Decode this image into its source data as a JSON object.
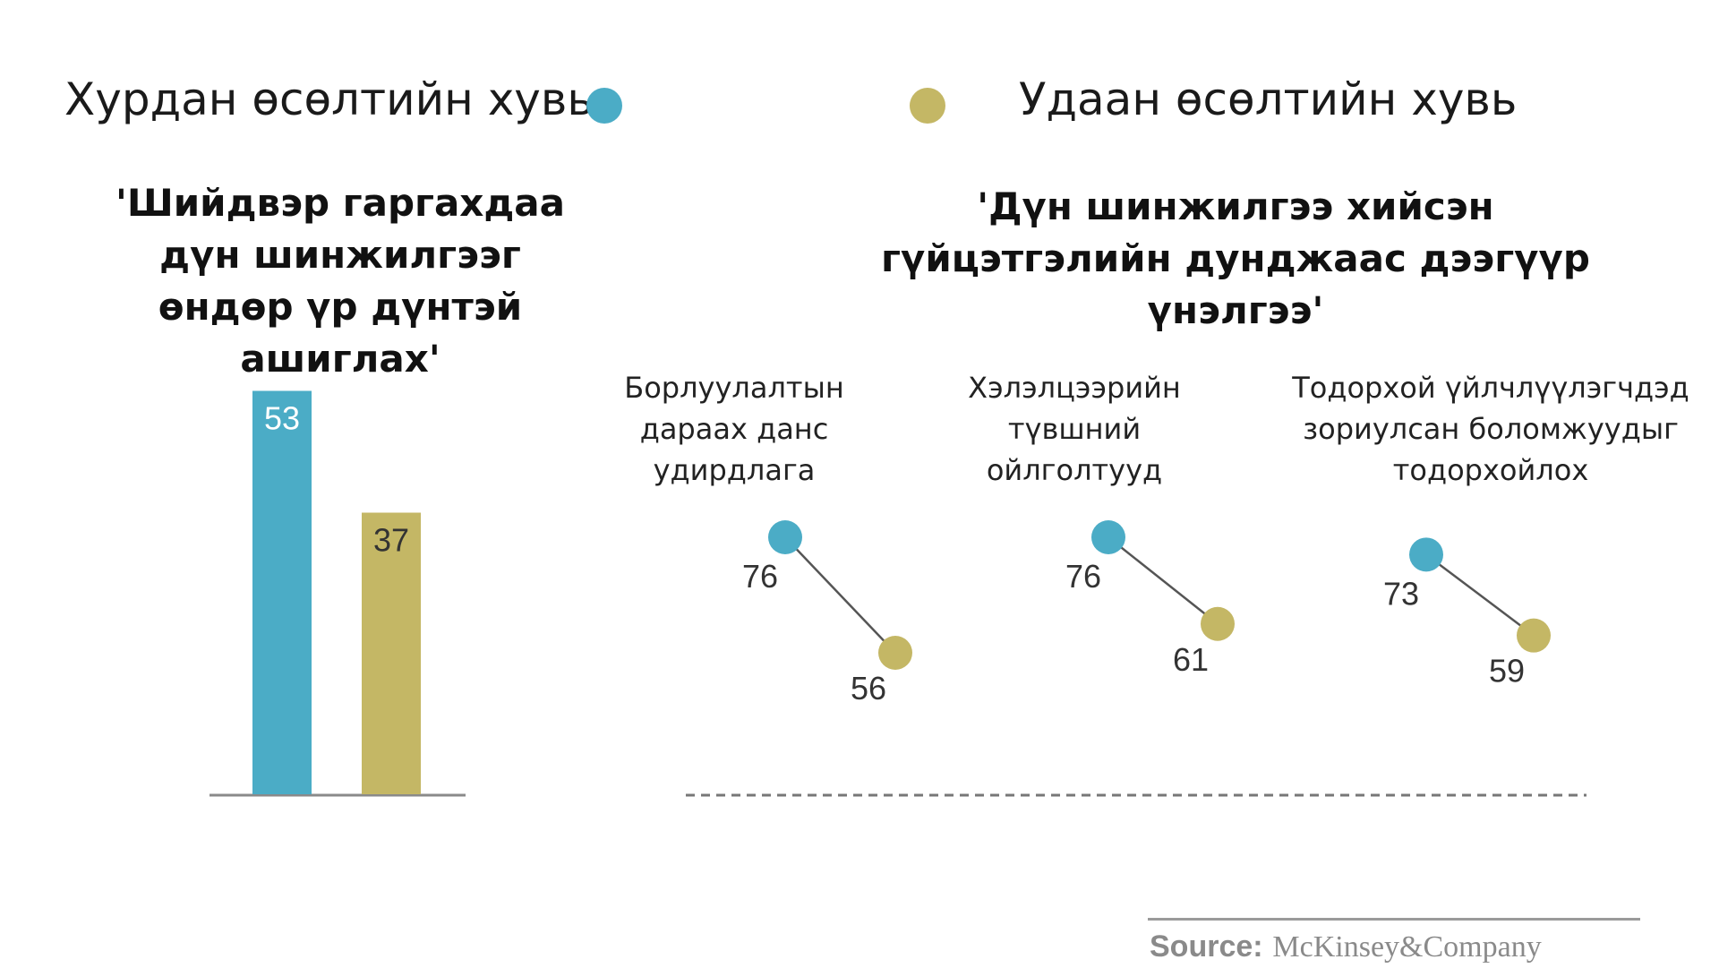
{
  "legend": {
    "fast": {
      "label": "Хурдан өсөлтийн хувь",
      "color": "#4bacc6"
    },
    "slow": {
      "label": "Удаан өсөлтийн хувь",
      "color": "#c4b765"
    }
  },
  "chart_data": [
    {
      "type": "bar",
      "title": "'Шийдвэр гаргахдаа дүн шинжилгээг өндөр үр дүнтэй ашиглах'",
      "series": [
        {
          "name": "Хурдан өсөлтийн хувь",
          "values": [
            53
          ]
        },
        {
          "name": "Удаан өсөлтийн хувь",
          "values": [
            37
          ]
        }
      ],
      "ylim": [
        0,
        60
      ]
    },
    {
      "type": "scatter",
      "title": "'Дүн шинжилгээ хийсэн гүйцэтгэлийн дунджаас дээгүүр үнэлгээ'",
      "categories": [
        "Борлуулалтын дараах данс удирдлага",
        "Хэлэлцээрийн түвшний ойлголтууд",
        "Тодорхой үйлчлүүлэгчдэд зориулсан боломжуудыг тодорхойлох"
      ],
      "series": [
        {
          "name": "Хурдан өсөлтийн хувь",
          "values": [
            76,
            76,
            73
          ]
        },
        {
          "name": "Удаан өсөлтийн хувь",
          "values": [
            56,
            61,
            59
          ]
        }
      ]
    }
  ],
  "bar_chart": {
    "title_lines": [
      "'Шийдвэр гаргахдаа",
      "дүн шинжилгээг",
      "өндөр үр дүнтэй",
      "ашиглах'"
    ],
    "value_labels": [
      "53",
      "37"
    ]
  },
  "dumbbell_chart": {
    "title_lines": [
      "'Дүн шинжилгээ хийсэн",
      "гүйцэтгэлийн дунджаас дээгүүр",
      "үнэлгээ'"
    ],
    "groups": [
      {
        "label_lines": [
          "Борлуулалтын",
          "дараах данс",
          "удирдлага"
        ],
        "fast_label": "76",
        "slow_label": "56"
      },
      {
        "label_lines": [
          "Хэлэлцээрийн",
          "түвшний",
          "ойлголтууд"
        ],
        "fast_label": "76",
        "slow_label": "61"
      },
      {
        "label_lines": [
          "Тодорхой үйлчлүүлэгчдэд",
          "зориулсан боломжуудыг",
          "тодорхойлох"
        ],
        "fast_label": "73",
        "slow_label": "59"
      }
    ]
  },
  "source": {
    "prefix": "Source:",
    "brand": "McKinsey&Company"
  }
}
